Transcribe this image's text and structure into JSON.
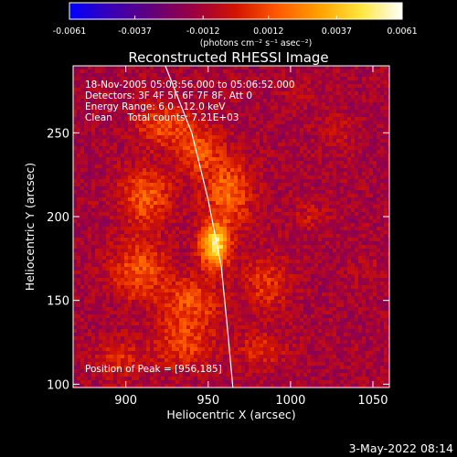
{
  "colors": {
    "background": "#000000",
    "foreground": "#ffffff",
    "limb_line": "#ffffff"
  },
  "chart_data": {
    "type": "heatmap",
    "title": "Reconstructed RHESSI Image",
    "xlabel": "Heliocentric X (arcsec)",
    "ylabel": "Heliocentric Y (arcsec)",
    "xlim": [
      868,
      1060
    ],
    "ylim": [
      98,
      290
    ],
    "xticks": [
      {
        "value": 900,
        "label": "900"
      },
      {
        "value": 950,
        "label": "950"
      },
      {
        "value": 1000,
        "label": "1000"
      },
      {
        "value": 1050,
        "label": "1050"
      }
    ],
    "yticks": [
      {
        "value": 100,
        "label": "100"
      },
      {
        "value": 150,
        "label": "150"
      },
      {
        "value": 200,
        "label": "200"
      },
      {
        "value": 250,
        "label": "250"
      }
    ],
    "colorbar": {
      "min": -0.0061,
      "max": 0.0061,
      "colormap": [
        "#0000ff",
        "#3a00b4",
        "#640078",
        "#9c0040",
        "#d21400",
        "#ff5a00",
        "#ffa000",
        "#ffe63c",
        "#ffffff"
      ],
      "ticks": [
        {
          "value": -0.0061,
          "label": "-0.0061"
        },
        {
          "value": -0.0037,
          "label": "-0.0037"
        },
        {
          "value": -0.0012,
          "label": "-0.0012"
        },
        {
          "value": 0.0012,
          "label": "0.0012"
        },
        {
          "value": 0.0037,
          "label": "0.0037"
        },
        {
          "value": 0.0061,
          "label": "0.0061"
        }
      ],
      "unit_label": "(photons cm⁻² s⁻¹ asec⁻²)"
    },
    "annotations": [
      "18-Nov-2005 05:03:56.000 to 05:06:52.000",
      "Detectors: 3F 4F 5F 6F 7F 8F, Att 0",
      "Energy Range: 6.0 - 12.0 keV",
      "Clean     Total counts: 7.21E+03"
    ],
    "peak_label": "Position of Peak = [956,185]",
    "peak": [
      956,
      185
    ],
    "sources": [
      {
        "x": 954,
        "y": 183,
        "amp": 0.0061,
        "sx": 6,
        "sy": 9
      },
      {
        "x": 962,
        "y": 214,
        "amp": 0.003,
        "sx": 10,
        "sy": 14
      },
      {
        "x": 944,
        "y": 240,
        "amp": 0.0026,
        "sx": 9,
        "sy": 10
      },
      {
        "x": 922,
        "y": 255,
        "amp": 0.0024,
        "sx": 11,
        "sy": 9
      },
      {
        "x": 912,
        "y": 212,
        "amp": 0.0027,
        "sx": 11,
        "sy": 12
      },
      {
        "x": 908,
        "y": 168,
        "amp": 0.0026,
        "sx": 12,
        "sy": 12
      },
      {
        "x": 940,
        "y": 150,
        "amp": 0.0023,
        "sx": 12,
        "sy": 10
      },
      {
        "x": 935,
        "y": 125,
        "amp": 0.0022,
        "sx": 13,
        "sy": 11
      },
      {
        "x": 985,
        "y": 160,
        "amp": 0.0018,
        "sx": 10,
        "sy": 12
      },
      {
        "x": 982,
        "y": 120,
        "amp": 0.0015,
        "sx": 11,
        "sy": 8
      },
      {
        "x": 895,
        "y": 115,
        "amp": 0.0016,
        "sx": 10,
        "sy": 8
      },
      {
        "x": 1012,
        "y": 200,
        "amp": 0.001,
        "sx": 7,
        "sy": 7
      },
      {
        "x": 1048,
        "y": 168,
        "amp": 0.0008,
        "sx": 6,
        "sy": 6
      },
      {
        "x": 1030,
        "y": 250,
        "amp": 0.0009,
        "sx": 7,
        "sy": 7
      },
      {
        "x": 1005,
        "y": 275,
        "amp": 0.0008,
        "sx": 6,
        "sy": 5
      }
    ],
    "background_level": -0.0013,
    "noise_level": 0.0009,
    "limb": [
      [
        924,
        290
      ],
      [
        940,
        250
      ],
      [
        950,
        210
      ],
      [
        958,
        170
      ],
      [
        962,
        130
      ],
      [
        965,
        98
      ]
    ]
  },
  "footer": {
    "timestamp": "3-May-2022 08:14"
  }
}
